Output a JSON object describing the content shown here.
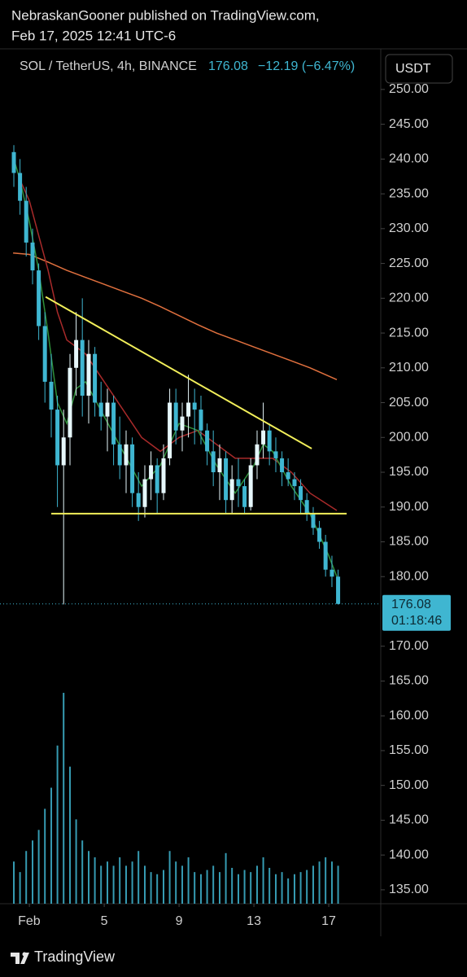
{
  "header": {
    "author_line": "NebraskanGooner published on TradingView.com,",
    "date_line": "Feb 17, 2025 12:41 UTC-6"
  },
  "chart_data": {
    "type": "candlestick",
    "symbol": "SOL / TetherUS, 4h, BINANCE",
    "last_price": 176.08,
    "change": {
      "value": -12.19,
      "label": "−12.19 (−6.47%)"
    },
    "currency": "USDT",
    "countdown": "01:18:46",
    "up_color": "#e6f7fb",
    "down_color": "#3fb6d1",
    "volume_color": "#3fb6d1",
    "x": [
      0.17,
      0.5,
      0.83,
      1.17,
      1.5,
      1.83,
      2.17,
      2.5,
      2.83,
      3.17,
      3.5,
      3.83,
      4.17,
      4.5,
      4.83,
      5.17,
      5.5,
      5.83,
      6.17,
      6.5,
      6.83,
      7.17,
      7.5,
      7.83,
      8.17,
      8.5,
      8.83,
      9.17,
      9.5,
      9.83,
      10.17,
      10.5,
      10.83,
      11.17,
      11.5,
      11.83,
      12.17,
      12.5,
      12.83,
      13.17,
      13.5,
      13.83,
      14.17,
      14.5,
      14.83,
      15.17,
      15.5,
      15.83,
      16.17,
      16.5,
      16.83,
      17.17,
      17.5
    ],
    "open": [
      241,
      238,
      234,
      228,
      224,
      216,
      208,
      204,
      196,
      200,
      210,
      214,
      206,
      212,
      205,
      203,
      205,
      199,
      196,
      199,
      192,
      190,
      194,
      196,
      192,
      197,
      205,
      201,
      203,
      205,
      204,
      201,
      198,
      195,
      197,
      191,
      194,
      193,
      190,
      196,
      199,
      201,
      198,
      197,
      195,
      194,
      193,
      191,
      189,
      187,
      185,
      181,
      180
    ],
    "high": [
      242,
      240,
      236,
      230,
      225,
      218,
      212,
      206,
      204,
      212,
      218,
      220,
      214,
      213,
      208,
      207,
      206,
      203,
      201,
      200,
      195,
      196,
      198,
      197,
      199,
      207,
      207,
      205,
      209,
      207,
      206,
      202,
      201,
      199,
      198,
      196,
      197,
      194,
      197,
      201,
      205,
      202,
      200,
      198,
      197,
      195,
      194,
      192,
      190,
      188,
      186,
      183,
      181
    ],
    "low": [
      236,
      232,
      226,
      222,
      214,
      205,
      200,
      190,
      176,
      196,
      206,
      203,
      202,
      203,
      201,
      198,
      196,
      194,
      192,
      190,
      188,
      188.5,
      191,
      189,
      191,
      196,
      199,
      198,
      200,
      199,
      199,
      196,
      193,
      191,
      189,
      189,
      190,
      189,
      189.5,
      194,
      197,
      196,
      195,
      193,
      193,
      191,
      189,
      188,
      186,
      184,
      180,
      178.5,
      176
    ],
    "close": [
      238,
      234,
      228,
      224,
      216,
      208,
      204,
      196,
      200,
      210,
      214,
      206,
      212,
      205,
      203,
      205,
      199,
      196,
      199,
      192,
      190,
      194,
      196,
      192,
      197,
      205,
      201,
      203,
      205,
      204,
      201,
      198,
      195,
      197,
      191,
      194,
      193,
      190,
      196,
      199,
      201,
      198,
      197,
      195,
      194,
      193,
      191,
      189,
      187,
      185,
      181,
      180,
      176.08
    ],
    "volume": [
      20,
      15,
      25,
      30,
      35,
      45,
      55,
      75,
      100,
      65,
      40,
      30,
      25,
      22,
      18,
      20,
      18,
      22,
      18,
      20,
      25,
      18,
      15,
      14,
      16,
      25,
      20,
      18,
      22,
      15,
      14,
      16,
      18,
      15,
      24,
      17,
      14,
      16,
      15,
      18,
      22,
      17,
      14,
      15,
      12,
      14,
      15,
      16,
      18,
      20,
      22,
      20,
      18
    ],
    "vlim": [
      0,
      105
    ],
    "overlays": [
      {
        "color": "#e0703e",
        "x": [
          0.13,
          1,
          2,
          3,
          4,
          5,
          6,
          7,
          8,
          9,
          10,
          11,
          12,
          13,
          14,
          15,
          16,
          17.43
        ],
        "values": [
          226.5,
          226.3,
          225.2,
          224,
          223,
          222,
          221,
          220,
          218.8,
          217.5,
          216.2,
          215,
          214,
          213,
          212,
          211,
          210,
          208.3
        ]
      },
      {
        "color": "#a82a2a",
        "x": [
          0.5,
          1,
          1.5,
          2,
          2.5,
          3,
          4,
          5,
          6,
          7,
          8,
          9,
          10,
          11,
          12,
          13,
          14,
          15,
          16,
          17.43
        ],
        "values": [
          237,
          234,
          229,
          224,
          218,
          214,
          212,
          208,
          204,
          200,
          198,
          200,
          201,
          199,
          197,
          197,
          197,
          195,
          192,
          189.5
        ]
      },
      {
        "color": "#2f8f3a",
        "x": [
          0.17,
          0.5,
          1,
          1.5,
          2,
          2.5,
          3,
          3.5,
          4,
          5,
          6,
          7,
          8,
          9,
          10,
          11,
          12,
          13,
          13.5,
          14,
          15,
          16,
          17,
          17.43
        ],
        "values": [
          240,
          237,
          231,
          224,
          215,
          205,
          202,
          207,
          208,
          203,
          198,
          193,
          196,
          202,
          201,
          196,
          192,
          196,
          199,
          198,
          193,
          189,
          183,
          180
        ]
      }
    ],
    "trendlines": [
      {
        "color": "#f2ef5a",
        "x": [
          1.87,
          16.09
        ],
        "values": [
          220.2,
          198.4
        ]
      },
      {
        "color": "#f2ef5a",
        "x": [
          2.17,
          17.96
        ],
        "values": [
          189.05,
          189.05
        ]
      }
    ],
    "xlim": [
      -0.57,
      19.78
    ],
    "xticks": [
      {
        "value": 1,
        "label": "Feb"
      },
      5,
      9,
      13,
      17
    ],
    "ylim": [
      133,
      255.6
    ],
    "yticks": [
      {
        "value": 250,
        "label": "250.00"
      },
      {
        "value": 245,
        "label": "245.00"
      },
      {
        "value": 240,
        "label": "240.00"
      },
      {
        "value": 235,
        "label": "235.00"
      },
      {
        "value": 230,
        "label": "230.00"
      },
      {
        "value": 225,
        "label": "225.00"
      },
      {
        "value": 220,
        "label": "220.00"
      },
      {
        "value": 215,
        "label": "215.00"
      },
      {
        "value": 210,
        "label": "210.00"
      },
      {
        "value": 205,
        "label": "205.00"
      },
      {
        "value": 200,
        "label": "200.00"
      },
      {
        "value": 195,
        "label": "195.00"
      },
      {
        "value": 190,
        "label": "190.00"
      },
      {
        "value": 185,
        "label": "185.00"
      },
      {
        "value": 180,
        "label": "180.00"
      },
      {
        "value": 170,
        "label": "170.00"
      },
      {
        "value": 165,
        "label": "165.00"
      },
      {
        "value": 160,
        "label": "160.00"
      },
      {
        "value": 155,
        "label": "155.00"
      },
      {
        "value": 150,
        "label": "150.00"
      },
      {
        "value": 145,
        "label": "145.00"
      },
      {
        "value": 140,
        "label": "140.00"
      },
      {
        "value": 135,
        "label": "135.00"
      }
    ]
  },
  "footer": {
    "brand": "TradingView"
  }
}
